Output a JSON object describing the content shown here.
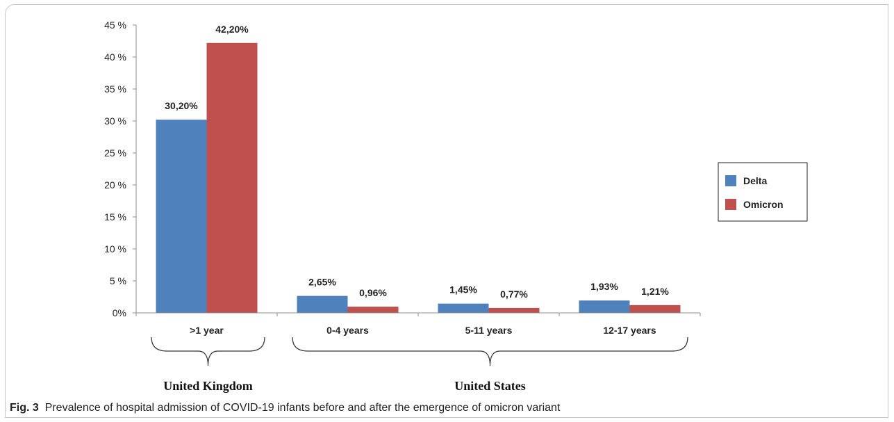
{
  "chart_data": {
    "type": "bar",
    "categories": [
      ">1 year",
      "0-4 years",
      "5-11 years",
      "12-17 years"
    ],
    "series": [
      {
        "name": "Delta",
        "color": "#4f81bd",
        "values": [
          30.2,
          2.65,
          1.45,
          1.93
        ],
        "labels": [
          "30,20%",
          "2,65%",
          "1,45%",
          "1,93%"
        ]
      },
      {
        "name": "Omicron",
        "color": "#c0504d",
        "values": [
          42.2,
          0.96,
          0.77,
          1.21
        ],
        "labels": [
          "42,20%",
          "0,96%",
          "0,77%",
          "1,21%"
        ]
      }
    ],
    "ylim": [
      0,
      45
    ],
    "yticks": [
      0,
      5,
      10,
      15,
      20,
      25,
      30,
      35,
      40,
      45
    ],
    "ytick_labels": [
      "0%",
      "5 %",
      "10 %",
      "15 %",
      "20 %",
      "25 %",
      "30 %",
      "35 %",
      "40 %",
      "45 %"
    ],
    "legend_position": "right",
    "grid": false,
    "groups": [
      {
        "label": "United Kingdom",
        "categories": [
          ">1 year"
        ]
      },
      {
        "label": "United States",
        "categories": [
          "0-4 years",
          "5-11 years",
          "12-17 years"
        ]
      }
    ]
  },
  "caption": {
    "fig_label": "Fig. 3",
    "text": "Prevalence of hospital admission of COVID-19 infants before and after the emergence of omicron variant"
  }
}
